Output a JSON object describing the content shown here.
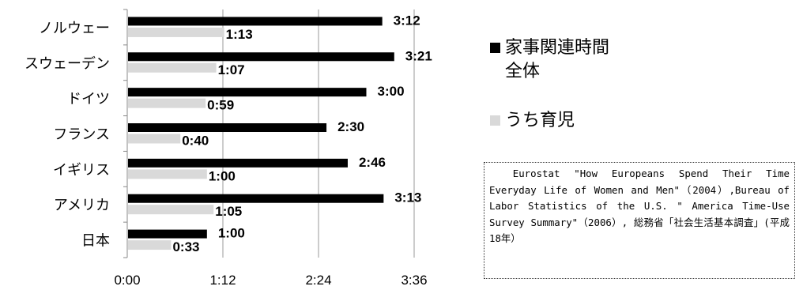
{
  "chart_data": {
    "type": "bar",
    "orientation": "horizontal",
    "categories": [
      "ノルウェー",
      "スウェーデン",
      "ドイツ",
      "フランス",
      "イギリス",
      "アメリカ",
      "日本"
    ],
    "series": [
      {
        "name": "家事関連時間全体",
        "name_lines": [
          "家事関連時間",
          "全体"
        ],
        "values": [
          192,
          201,
          180,
          150,
          166,
          193,
          60
        ],
        "labels": [
          "3:12",
          "3:21",
          "3:00",
          "2:30",
          "2:46",
          "3:13",
          "1:00"
        ],
        "color": "#000000"
      },
      {
        "name": "うち育児",
        "name_lines": [
          "うち育児"
        ],
        "values": [
          73,
          67,
          59,
          40,
          60,
          65,
          33
        ],
        "labels": [
          "1:13",
          "1:07",
          "0:59",
          "0:40",
          "1:00",
          "1:05",
          "0:33"
        ],
        "color": "#d9d9d9"
      }
    ],
    "x_ticks": [
      "0:00",
      "1:12",
      "2:24",
      "3:36"
    ],
    "x_tick_values": [
      0,
      72,
      144,
      216
    ],
    "xlim": [
      0,
      216
    ],
    "grid": true,
    "legend_position": "right"
  },
  "source_note": "Eurostat \"How Europeans Spend Their Time Everyday Life of Women and Men\"（2004）,Bureau of Labor Statistics of the U.S. \" America Time-Use Survey Summary\"（2006）, 総務省「社会生活基本調査」(平成18年）"
}
